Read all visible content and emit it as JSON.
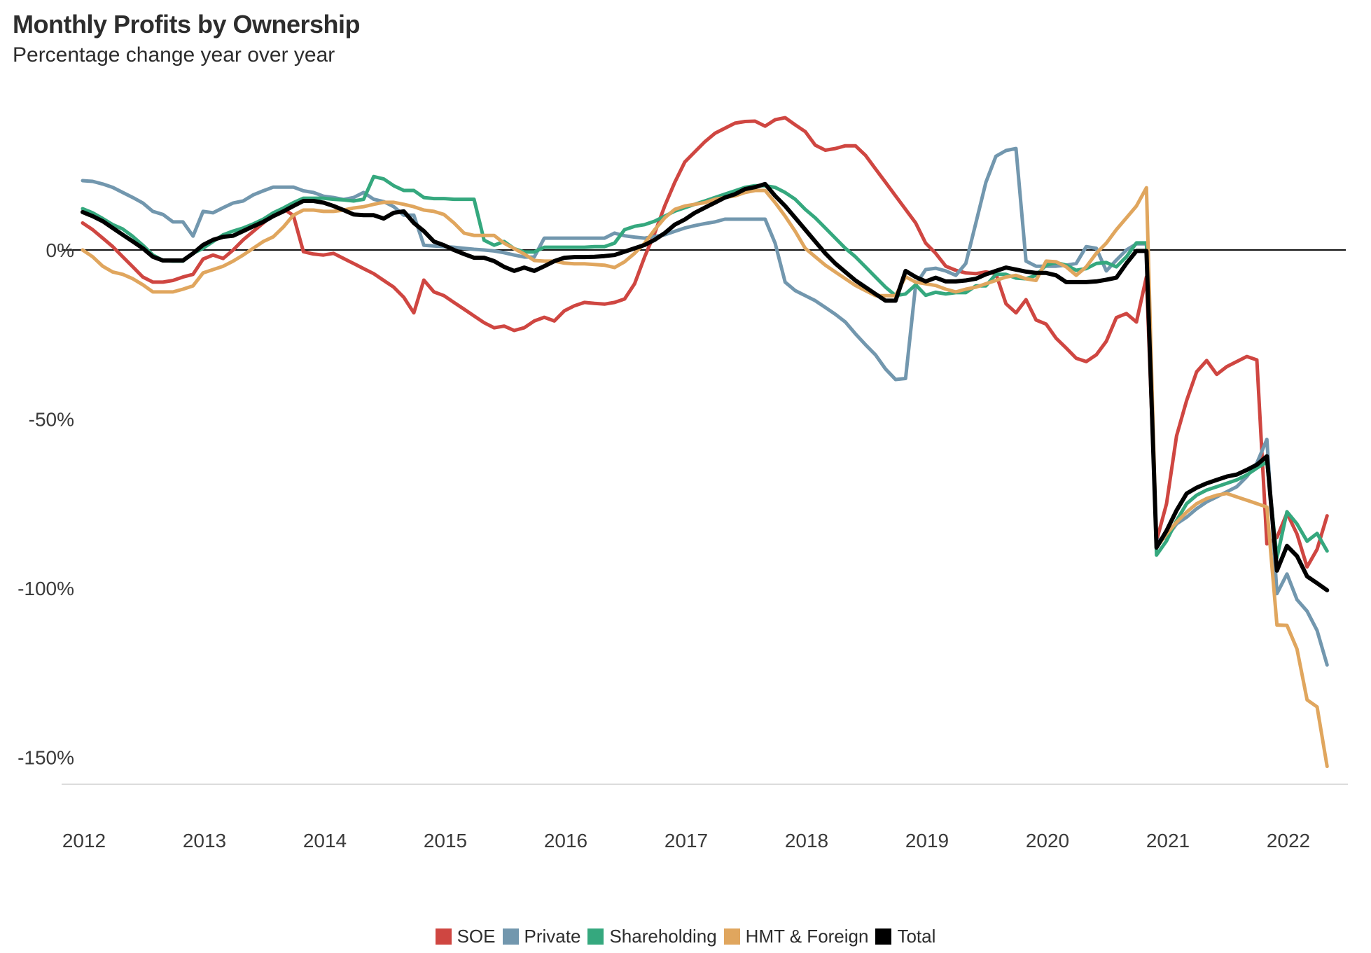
{
  "header": {
    "title": "Monthly Profits by Ownership",
    "subtitle": "Percentage change year over year"
  },
  "chart_data": {
    "type": "line",
    "title": "Monthly Profits by Ownership",
    "subtitle": "Percentage change year over year",
    "unit": "percent change year over year",
    "x_start": "2012-01",
    "x_frequency": "monthly",
    "x_tick_labels": [
      "2012",
      "2013",
      "2014",
      "2015",
      "2016",
      "2017",
      "2018",
      "2019",
      "2020",
      "2021",
      "2022"
    ],
    "y_ticks": [
      {
        "label": "0%",
        "value": 0
      },
      {
        "label": "-50%",
        "value": -50
      },
      {
        "label": "-100%",
        "value": -100
      },
      {
        "label": "-150%",
        "value": -150
      }
    ],
    "ylim": [
      -160,
      45
    ],
    "grid": "zero-baseline-only",
    "legend_position": "bottom-center",
    "zero_line_color": "#111111",
    "axis_rule_color": "#dcdcdc",
    "series": [
      {
        "name": "SOE",
        "color": "#cf4641",
        "values": [
          8,
          6,
          3.5,
          1,
          -2,
          -5,
          -8,
          -9.5,
          -9.5,
          -9,
          -8,
          -7.2,
          -2.7,
          -1.5,
          -2.5,
          0,
          3,
          5.5,
          8,
          10.5,
          12.2,
          10.2,
          -0.5,
          -1.2,
          -1.5,
          -1,
          -2.5,
          -4,
          -5.5,
          -7,
          -9,
          -11,
          -14,
          -18.6,
          -8.9,
          -12.4,
          -13.5,
          -15.5,
          -17.5,
          -19.5,
          -21.5,
          -23,
          -22.5,
          -23.8,
          -23,
          -21,
          -19.9,
          -21,
          -18,
          -16.5,
          -15.5,
          -15.8,
          -16,
          -15.5,
          -14.5,
          -10,
          -2,
          5,
          13,
          20,
          26,
          29,
          32,
          34.5,
          36,
          37.5,
          38,
          38.1,
          36.6,
          38.5,
          39.1,
          37,
          35,
          31,
          29.5,
          30,
          30.8,
          30.8,
          28,
          24,
          20,
          16,
          12,
          8,
          2,
          -1,
          -4.8,
          -6,
          -6.8,
          -7,
          -6.5,
          -7,
          -15.9,
          -18.6,
          -14.7,
          -20.7,
          -21.9,
          -26.1,
          -29,
          -32,
          -33,
          -31,
          -27,
          -20,
          -18.8,
          -21.3,
          -7.9,
          -86,
          -75,
          -55,
          -44.5,
          -36,
          -32.7,
          -36.8,
          -34.5,
          -33,
          -31.5,
          -32.5,
          -86.9,
          -85,
          -77.8,
          -84,
          -93.7,
          -88.5,
          -78.6
        ]
      },
      {
        "name": "Private",
        "color": "#7297ae",
        "values": [
          20.5,
          20.3,
          19.5,
          18.5,
          17,
          15.5,
          13.9,
          11.4,
          10.5,
          8.3,
          8.3,
          4.1,
          11.4,
          11,
          12.5,
          13.9,
          14.5,
          16.3,
          17.5,
          18.6,
          18.6,
          18.6,
          17.5,
          17,
          15.9,
          15.5,
          14.9,
          15.5,
          17,
          15,
          14.3,
          12.8,
          10.3,
          10.3,
          1.4,
          1.2,
          1,
          0.8,
          0.5,
          0.2,
          0,
          -0.3,
          -0.8,
          -1.5,
          -2.1,
          -2.1,
          3.5,
          3.5,
          3.5,
          3.5,
          3.5,
          3.5,
          3.5,
          5,
          4.2,
          3.8,
          3.5,
          4,
          4.5,
          5.5,
          6.5,
          7.2,
          7.8,
          8.3,
          9.1,
          9.1,
          9.1,
          9.1,
          9.1,
          2,
          -9.5,
          -12,
          -13.5,
          -15,
          -17,
          -19,
          -21.3,
          -24.8,
          -28,
          -31,
          -35.2,
          -38.3,
          -38,
          -10.3,
          -5.8,
          -5.4,
          -6.2,
          -7.5,
          -4,
          8,
          20,
          27.7,
          29.4,
          30,
          -3.3,
          -4.8,
          -4.8,
          -4.8,
          -4.5,
          -4,
          1,
          0.5,
          -6.2,
          -3,
          0,
          1.8,
          1.8,
          -86,
          -85,
          -81,
          -79,
          -76.5,
          -74.5,
          -73,
          -71.5,
          -70,
          -67,
          -63,
          -56,
          -101.6,
          -95.8,
          -103.4,
          -106.8,
          -112.5,
          -122.7
        ]
      },
      {
        "name": "Shareholding",
        "color": "#35a87e",
        "values": [
          12.2,
          11,
          9.3,
          7.5,
          6.2,
          4,
          1.4,
          -1.5,
          -3.1,
          -3.3,
          -3.3,
          -1,
          0.5,
          2.5,
          4.5,
          5.6,
          6.5,
          7.7,
          9.1,
          11,
          12.4,
          14,
          15.3,
          15.3,
          15.3,
          15,
          14.8,
          14.5,
          15,
          21.7,
          21,
          19,
          17.6,
          17.6,
          15.5,
          15.2,
          15.2,
          15,
          15,
          15,
          2.9,
          1.4,
          2.5,
          0.4,
          -0.6,
          -0.6,
          0.8,
          0.8,
          0.8,
          0.8,
          0.8,
          1,
          1,
          2,
          6,
          7,
          7.5,
          8.5,
          10,
          11.5,
          12.5,
          13.5,
          14.5,
          15.5,
          16.5,
          17.5,
          18.5,
          19,
          19,
          18.5,
          17,
          15,
          12,
          9.5,
          6.5,
          3.5,
          0.5,
          -2,
          -5,
          -8,
          -11,
          -13.5,
          -13,
          -10.3,
          -13.4,
          -12.5,
          -13,
          -12.6,
          -12.6,
          -10.6,
          -10.6,
          -7.2,
          -7.2,
          -8.3,
          -8.5,
          -7.5,
          -4.5,
          -3.7,
          -4.5,
          -6,
          -5.5,
          -4,
          -3.7,
          -5,
          -2,
          2.1,
          2.1,
          -90.2,
          -86,
          -80,
          -75,
          -72.5,
          -71,
          -70,
          -69,
          -68,
          -66.5,
          -64.5,
          -62.7,
          -91,
          -77.4,
          -81,
          -86.1,
          -83.8,
          -89
        ]
      },
      {
        "name": "HMT & Foreign",
        "color": "#e0a65e",
        "values": [
          0,
          -2,
          -4.8,
          -6.5,
          -7.2,
          -8.5,
          -10.3,
          -12.4,
          -12.4,
          -12.4,
          -11.6,
          -10.6,
          -6.8,
          -5.8,
          -4.8,
          -3.3,
          -1.5,
          0.5,
          2.5,
          3.9,
          6.8,
          10.3,
          11.8,
          11.8,
          11.4,
          11.4,
          11.8,
          12.4,
          12.8,
          13.5,
          14.1,
          14.1,
          13.5,
          12.8,
          11.8,
          11.4,
          10.5,
          8,
          5,
          4.3,
          4.3,
          4.3,
          2,
          0.4,
          -1.2,
          -3.1,
          -3.3,
          -3.3,
          -3.9,
          -4.1,
          -4.1,
          -4.3,
          -4.5,
          -5.2,
          -3.5,
          -1,
          2,
          6,
          9.5,
          12,
          13,
          13.5,
          14,
          15,
          15.5,
          16,
          17,
          17.6,
          17.6,
          14,
          10,
          5.5,
          0.5,
          -2,
          -4.5,
          -6.5,
          -8.5,
          -10.5,
          -12,
          -13.5,
          -13.5,
          -13.5,
          -7.9,
          -9.5,
          -10,
          -10.5,
          -11.6,
          -12.4,
          -11.6,
          -11,
          -10,
          -9,
          -8,
          -7.5,
          -8.5,
          -9,
          -3.3,
          -3.5,
          -5,
          -7.5,
          -5,
          -1,
          2,
          6,
          9.5,
          13,
          18.4,
          -88,
          -84,
          -80.5,
          -77.5,
          -75,
          -73.5,
          -72.5,
          -72,
          -73,
          -74,
          -75,
          -76,
          -110.9,
          -111,
          -118,
          -133,
          -135.1,
          -152.7
        ]
      },
      {
        "name": "Total",
        "color": "#000000",
        "values": [
          11.2,
          10,
          8.5,
          6.5,
          4.5,
          2.5,
          0.5,
          -2,
          -3.1,
          -3.1,
          -3.1,
          -1,
          1.5,
          3,
          3.9,
          4.2,
          5.6,
          7,
          8.3,
          10,
          11.4,
          13,
          14.5,
          14.5,
          14,
          13,
          11.8,
          10.5,
          10.3,
          10.3,
          9.3,
          11,
          11.4,
          8,
          5.6,
          2.5,
          1.4,
          0,
          -1.2,
          -2.3,
          -2.3,
          -3.3,
          -5,
          -6.2,
          -5.2,
          -6.2,
          -4.8,
          -3.3,
          -2.3,
          -2.1,
          -2.1,
          -2,
          -1.8,
          -1.5,
          -0.5,
          0.5,
          1.5,
          3,
          5,
          7.5,
          9,
          11,
          12.5,
          14,
          15.5,
          16.5,
          18,
          18.6,
          19.5,
          16,
          13,
          9.5,
          6,
          2.5,
          -1,
          -4,
          -6.5,
          -9,
          -11,
          -13,
          -15,
          -15,
          -6.2,
          -8,
          -9.3,
          -8.2,
          -9.3,
          -9.3,
          -9,
          -8.5,
          -7.2,
          -6.2,
          -5.2,
          -5.8,
          -6.4,
          -6.8,
          -6.8,
          -7.5,
          -9.5,
          -9.5,
          -9.5,
          -9.3,
          -8.8,
          -8.2,
          -4,
          -0.3,
          -0.3,
          -88,
          -83,
          -77,
          -72,
          -70.3,
          -69,
          -68,
          -67,
          -66.4,
          -65,
          -63.5,
          -61,
          -94.8,
          -87.5,
          -90.5,
          -96.5,
          -98.5,
          -100.6
        ]
      }
    ]
  }
}
